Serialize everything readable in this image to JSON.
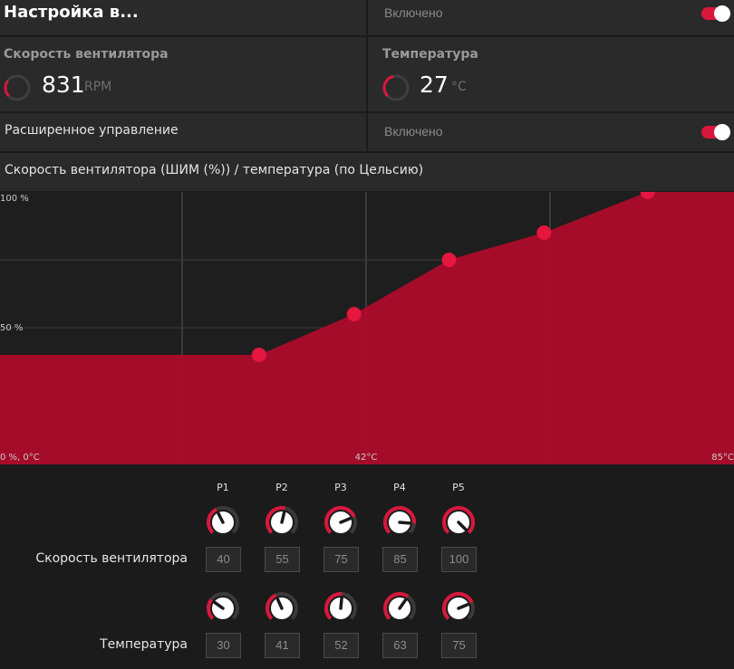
{
  "header": {
    "title": "Настройка в...",
    "status": "Включено",
    "toggle_on": true
  },
  "fan": {
    "label": "Скорость вентилятора",
    "value": "831",
    "unit": "RPM",
    "gauge_fraction": 0.3
  },
  "temperature": {
    "label": "Температура",
    "value": "27",
    "unit": "°C",
    "gauge_fraction": 0.45
  },
  "advanced": {
    "label": "Расширенное управление",
    "status": "Включено",
    "toggle_on": true
  },
  "curve_title": "Скорость вентилятора (ШИМ (%)) / температура (по Цельсию)",
  "chart_data": {
    "type": "area",
    "x": [
      30,
      41,
      52,
      63,
      75
    ],
    "values": [
      40,
      55,
      75,
      85,
      100
    ],
    "xlim": [
      0,
      85
    ],
    "ylim": [
      0,
      100
    ],
    "y_tick_labels": [
      "100 %",
      "50 %"
    ],
    "x_tick_labels": [
      "0 %, 0°C",
      "42°C",
      "85°C"
    ],
    "fill_color": "#ad0c2b",
    "point_color": "#e5163f",
    "grid": true
  },
  "points": {
    "labels": [
      "P1",
      "P2",
      "P3",
      "P4",
      "P5"
    ],
    "fan_label": "Скорость вентилятора",
    "fan_values": [
      "40",
      "55",
      "75",
      "85",
      "100"
    ],
    "temp_label": "Температура",
    "temp_values": [
      "30",
      "41",
      "52",
      "63",
      "75"
    ]
  },
  "colors": {
    "accent": "#d8173d",
    "panel": "#2a2a2a",
    "background": "#1b1b1b"
  }
}
